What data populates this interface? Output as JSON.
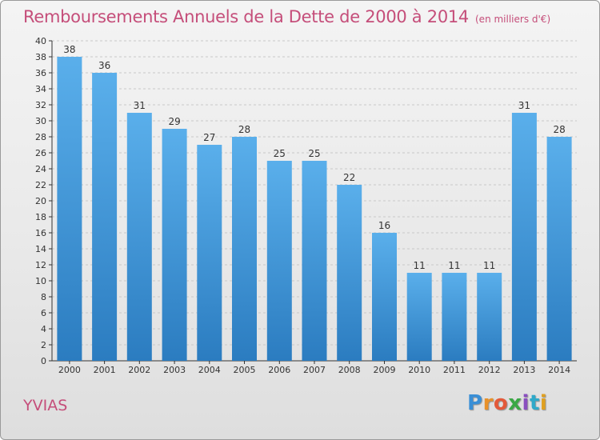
{
  "header": {
    "title": "Remboursements Annuels de la Dette de 2000 à 2014",
    "unit": "(en milliers d'€)"
  },
  "footer": {
    "city": "YVIAS",
    "brand": "Proxiti"
  },
  "colors": {
    "title": "#c54e7a",
    "bar_top": "#5aafeb",
    "bar_bottom": "#2b7cc0",
    "axis": "#333333",
    "grid": "#c8c8c8"
  },
  "chart_data": {
    "type": "bar",
    "title": "Remboursements Annuels de la Dette de 2000 à 2014",
    "xlabel": "",
    "ylabel": "",
    "ylim": [
      0,
      40
    ],
    "ytick_step": 2,
    "grid": "horizontal dashed",
    "legend": "none",
    "categories": [
      "2000",
      "2001",
      "2002",
      "2003",
      "2004",
      "2005",
      "2006",
      "2007",
      "2008",
      "2009",
      "2010",
      "2011",
      "2012",
      "2013",
      "2014"
    ],
    "values": [
      38,
      36,
      31,
      29,
      27,
      28,
      25,
      25,
      22,
      16,
      11,
      11,
      11,
      31,
      28
    ]
  }
}
